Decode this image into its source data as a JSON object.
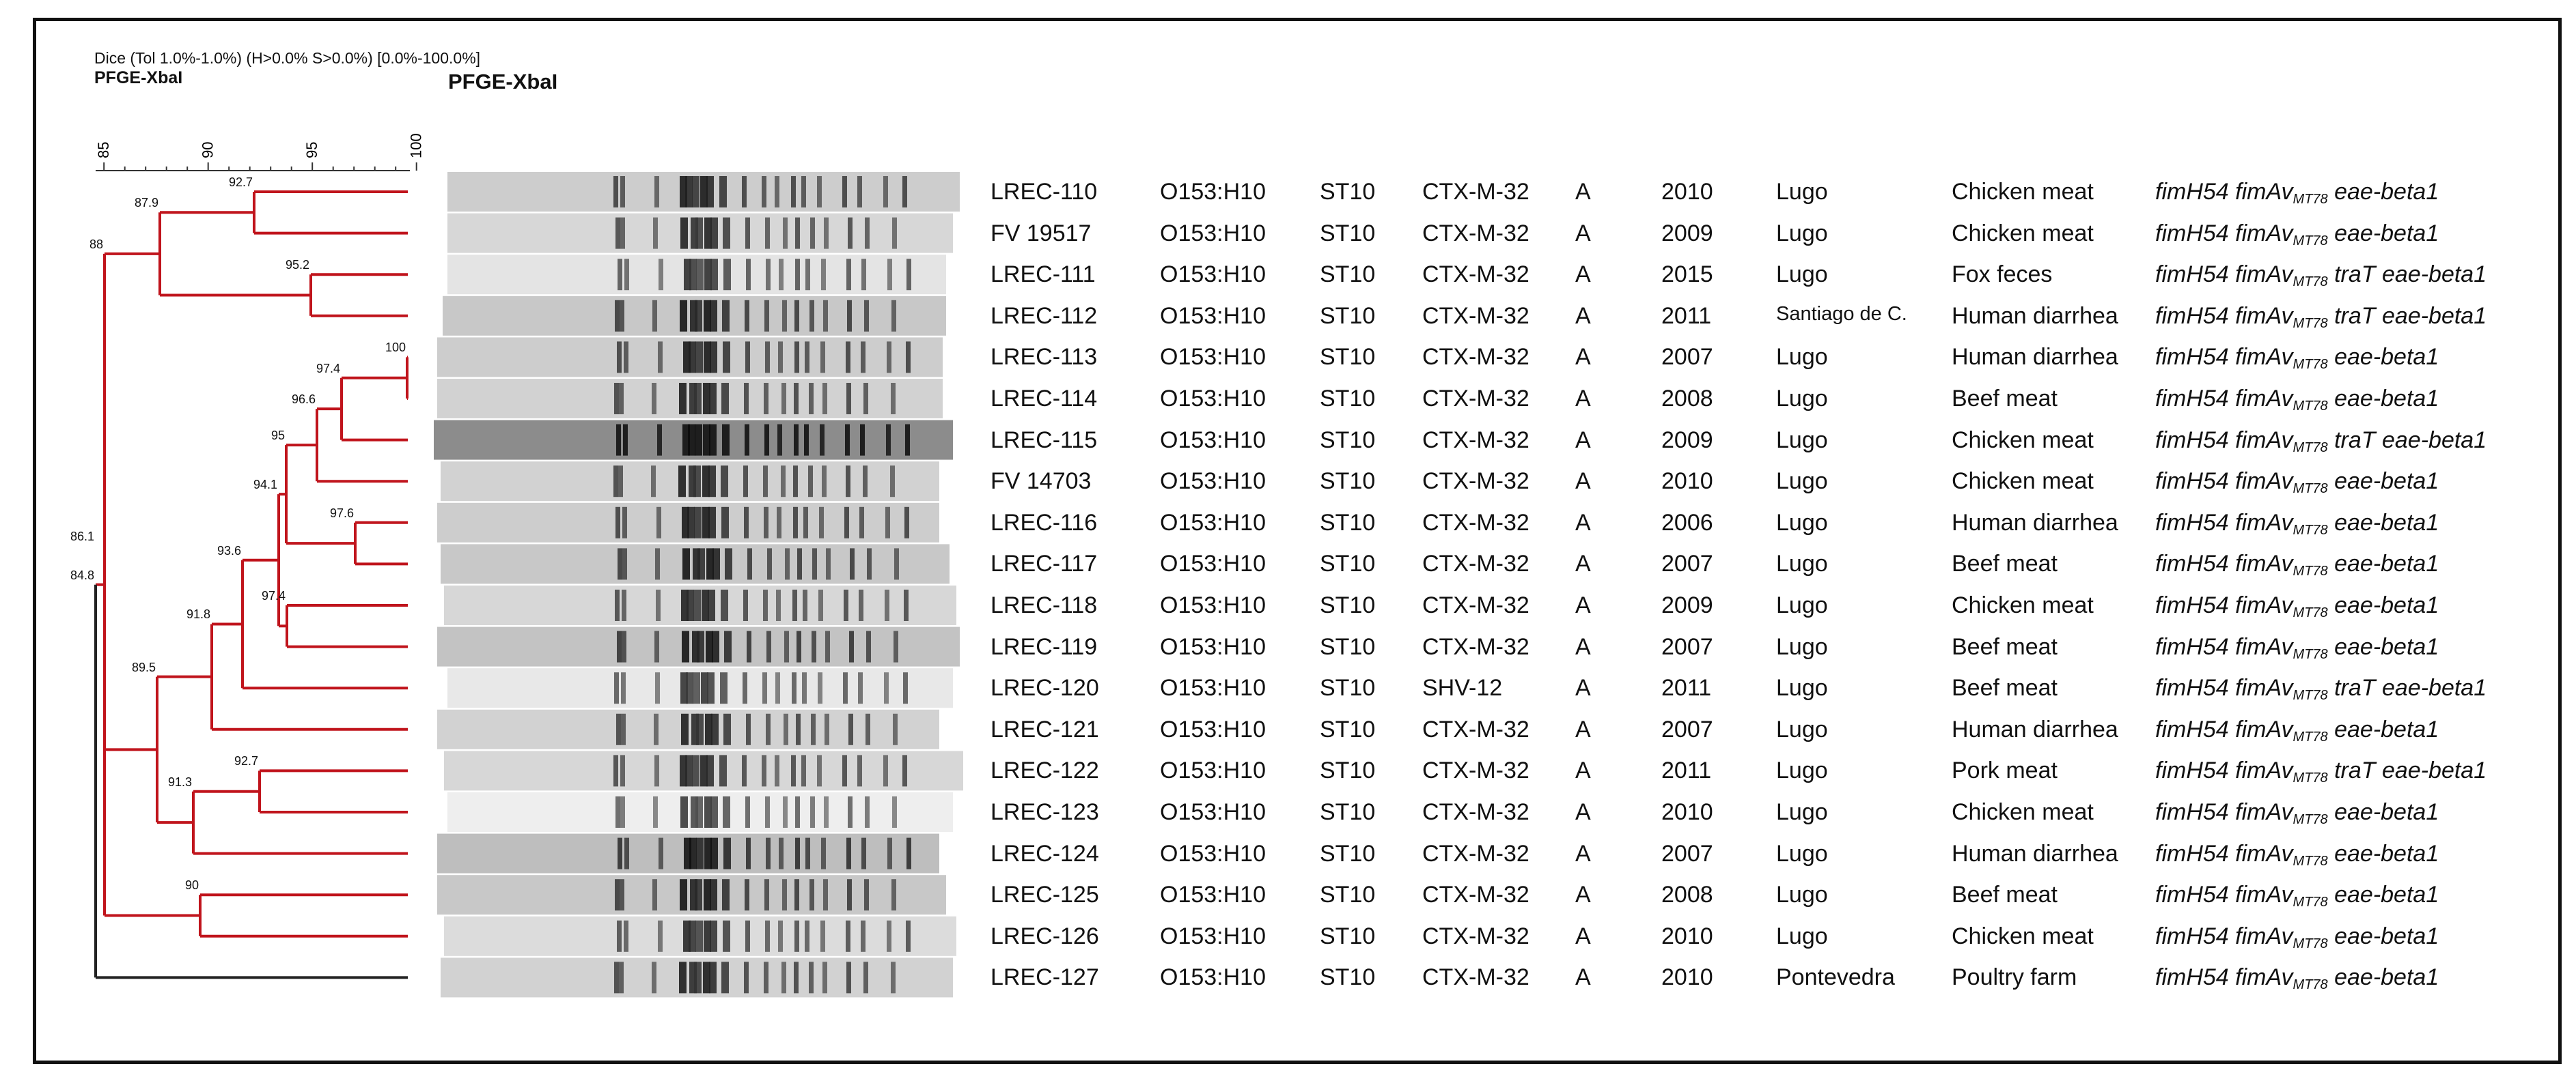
{
  "header": {
    "dice_line": "Dice (Tol 1.0%-1.0%) (H>0.0% S>0.0%) [0.0%-100.0%]",
    "pfge_small": "PFGE-XbaI",
    "pfge_big": "PFGE-XbaI"
  },
  "scale": {
    "ticks": [
      "85",
      "90",
      "95",
      "100"
    ]
  },
  "colors": {
    "tree_red": "#c0141c",
    "tree_black": "#222222",
    "frame": "#111111"
  },
  "tree_nodes": [
    "92.7",
    "87.9",
    "95.2",
    "100",
    "97.4",
    "96.6",
    "95",
    "97.6",
    "94.1",
    "97.4",
    "93.6",
    "91.8",
    "91.3",
    "92.7",
    "89.5",
    "88",
    "90",
    "86.1",
    "84.8"
  ],
  "isolates": [
    {
      "strain": "LREC-110",
      "serotype": "O153:H10",
      "st": "ST10",
      "esbl": "CTX-M-32",
      "group": "A",
      "year": "2010",
      "location": "Lugo",
      "source": "Chicken meat",
      "genes_pre": "fimH54 fimAv",
      "genes_sub": "MT78",
      "genes_post": " eae-beta1"
    },
    {
      "strain": "FV 19517",
      "serotype": "O153:H10",
      "st": "ST10",
      "esbl": "CTX-M-32",
      "group": "A",
      "year": "2009",
      "location": "Lugo",
      "source": "Chicken meat",
      "genes_pre": "fimH54 fimAv",
      "genes_sub": "MT78",
      "genes_post": " eae-beta1"
    },
    {
      "strain": "LREC-111",
      "serotype": "O153:H10",
      "st": "ST10",
      "esbl": "CTX-M-32",
      "group": "A",
      "year": "2015",
      "location": "Lugo",
      "source": "Fox feces",
      "genes_pre": "fimH54 fimAv",
      "genes_sub": "MT78",
      "genes_post": " traT eae-beta1"
    },
    {
      "strain": "LREC-112",
      "serotype": "O153:H10",
      "st": "ST10",
      "esbl": "CTX-M-32",
      "group": "A",
      "year": "2011",
      "location": "Santiago de C.",
      "source": "Human diarrhea",
      "genes_pre": "fimH54 fimAv",
      "genes_sub": "MT78",
      "genes_post": " traT eae-beta1"
    },
    {
      "strain": "LREC-113",
      "serotype": "O153:H10",
      "st": "ST10",
      "esbl": "CTX-M-32",
      "group": "A",
      "year": "2007",
      "location": "Lugo",
      "source": "Human diarrhea",
      "genes_pre": "fimH54 fimAv",
      "genes_sub": "MT78",
      "genes_post": " eae-beta1"
    },
    {
      "strain": "LREC-114",
      "serotype": "O153:H10",
      "st": "ST10",
      "esbl": "CTX-M-32",
      "group": "A",
      "year": "2008",
      "location": "Lugo",
      "source": "Beef meat",
      "genes_pre": "fimH54 fimAv",
      "genes_sub": "MT78",
      "genes_post": " eae-beta1"
    },
    {
      "strain": "LREC-115",
      "serotype": "O153:H10",
      "st": "ST10",
      "esbl": "CTX-M-32",
      "group": "A",
      "year": "2009",
      "location": "Lugo",
      "source": "Chicken meat",
      "genes_pre": "fimH54 fimAv",
      "genes_sub": "MT78",
      "genes_post": " traT eae-beta1"
    },
    {
      "strain": "FV 14703",
      "serotype": "O153:H10",
      "st": "ST10",
      "esbl": "CTX-M-32",
      "group": "A",
      "year": "2010",
      "location": "Lugo",
      "source": "Chicken meat",
      "genes_pre": "fimH54 fimAv",
      "genes_sub": "MT78",
      "genes_post": " eae-beta1"
    },
    {
      "strain": "LREC-116",
      "serotype": "O153:H10",
      "st": "ST10",
      "esbl": "CTX-M-32",
      "group": "A",
      "year": "2006",
      "location": "Lugo",
      "source": "Human diarrhea",
      "genes_pre": "fimH54 fimAv",
      "genes_sub": "MT78",
      "genes_post": " eae-beta1"
    },
    {
      "strain": "LREC-117",
      "serotype": "O153:H10",
      "st": "ST10",
      "esbl": "CTX-M-32",
      "group": "A",
      "year": "2007",
      "location": "Lugo",
      "source": "Beef meat",
      "genes_pre": "fimH54 fimAv",
      "genes_sub": "MT78",
      "genes_post": " eae-beta1"
    },
    {
      "strain": "LREC-118",
      "serotype": "O153:H10",
      "st": "ST10",
      "esbl": "CTX-M-32",
      "group": "A",
      "year": "2009",
      "location": "Lugo",
      "source": "Chicken meat",
      "genes_pre": "fimH54 fimAv",
      "genes_sub": "MT78",
      "genes_post": " eae-beta1"
    },
    {
      "strain": "LREC-119",
      "serotype": "O153:H10",
      "st": "ST10",
      "esbl": "CTX-M-32",
      "group": "A",
      "year": "2007",
      "location": "Lugo",
      "source": "Beef meat",
      "genes_pre": "fimH54 fimAv",
      "genes_sub": "MT78",
      "genes_post": " eae-beta1"
    },
    {
      "strain": "LREC-120",
      "serotype": "O153:H10",
      "st": "ST10",
      "esbl": "SHV-12",
      "group": "A",
      "year": "2011",
      "location": "Lugo",
      "source": "Beef meat",
      "genes_pre": "fimH54 fimAv",
      "genes_sub": "MT78",
      "genes_post": " traT eae-beta1"
    },
    {
      "strain": "LREC-121",
      "serotype": "O153:H10",
      "st": "ST10",
      "esbl": "CTX-M-32",
      "group": "A",
      "year": "2007",
      "location": "Lugo",
      "source": "Human diarrhea",
      "genes_pre": "fimH54 fimAv",
      "genes_sub": "MT78",
      "genes_post": " eae-beta1"
    },
    {
      "strain": "LREC-122",
      "serotype": "O153:H10",
      "st": "ST10",
      "esbl": "CTX-M-32",
      "group": "A",
      "year": "2011",
      "location": "Lugo",
      "source": "Pork meat",
      "genes_pre": "fimH54 fimAv",
      "genes_sub": "MT78",
      "genes_post": " traT eae-beta1"
    },
    {
      "strain": "LREC-123",
      "serotype": "O153:H10",
      "st": "ST10",
      "esbl": "CTX-M-32",
      "group": "A",
      "year": "2010",
      "location": "Lugo",
      "source": "Chicken meat",
      "genes_pre": "fimH54 fimAv",
      "genes_sub": "MT78",
      "genes_post": " eae-beta1"
    },
    {
      "strain": "LREC-124",
      "serotype": "O153:H10",
      "st": "ST10",
      "esbl": "CTX-M-32",
      "group": "A",
      "year": "2007",
      "location": "Lugo",
      "source": "Human diarrhea",
      "genes_pre": "fimH54 fimAv",
      "genes_sub": "MT78",
      "genes_post": " eae-beta1"
    },
    {
      "strain": "LREC-125",
      "serotype": "O153:H10",
      "st": "ST10",
      "esbl": "CTX-M-32",
      "group": "A",
      "year": "2008",
      "location": "Lugo",
      "source": "Beef meat",
      "genes_pre": "fimH54 fimAv",
      "genes_sub": "MT78",
      "genes_post": " eae-beta1"
    },
    {
      "strain": "LREC-126",
      "serotype": "O153:H10",
      "st": "ST10",
      "esbl": "CTX-M-32",
      "group": "A",
      "year": "2010",
      "location": "Lugo",
      "source": "Chicken meat",
      "genes_pre": "fimH54 fimAv",
      "genes_sub": "MT78",
      "genes_post": " eae-beta1"
    },
    {
      "strain": "LREC-127",
      "serotype": "O153:H10",
      "st": "ST10",
      "esbl": "CTX-M-32",
      "group": "A",
      "year": "2010",
      "location": "Pontevedra",
      "source": "Poultry farm",
      "genes_pre": "fimH54 fimAv",
      "genes_sub": "MT78",
      "genes_post": " eae-beta1"
    }
  ]
}
